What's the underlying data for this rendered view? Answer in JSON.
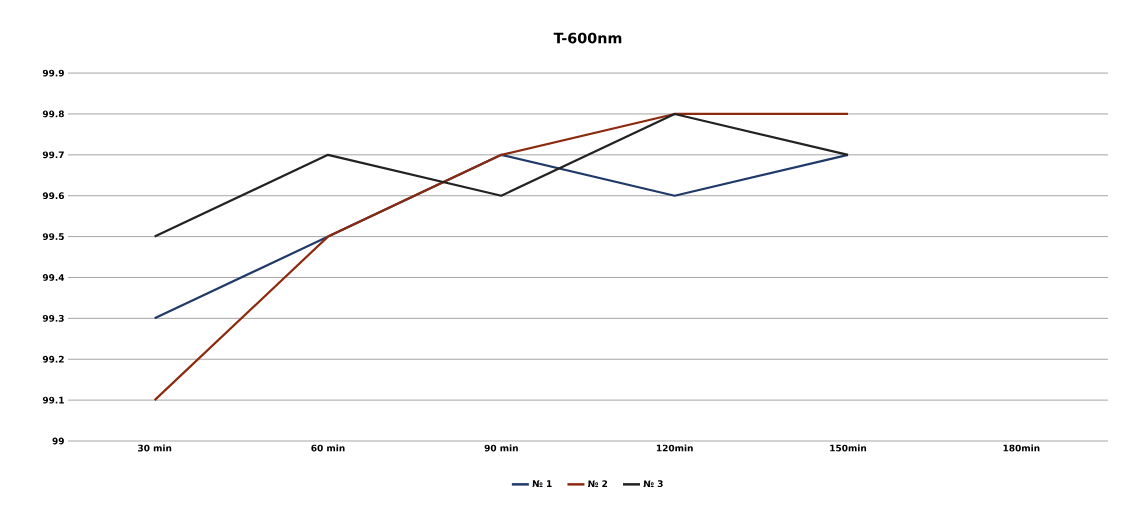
{
  "chart_data": {
    "type": "line",
    "title": "T-600nm",
    "categories": [
      "30 min",
      "60 min",
      "90 min",
      "120min",
      "150min",
      "180min"
    ],
    "series": [
      {
        "name": "№ 1",
        "color": "#1f3a68",
        "values": [
          99.3,
          99.5,
          99.7,
          99.6,
          99.7,
          null
        ]
      },
      {
        "name": "№ 2",
        "color": "#8b2a0e",
        "values": [
          99.1,
          99.5,
          99.7,
          99.8,
          99.8,
          null
        ]
      },
      {
        "name": "№ 3",
        "color": "#222222",
        "values": [
          99.5,
          99.7,
          99.6,
          99.8,
          99.7,
          null
        ]
      }
    ],
    "ylim": [
      99,
      99.9
    ],
    "yticks": [
      99,
      99.1,
      99.2,
      99.3,
      99.4,
      99.5,
      99.6,
      99.7,
      99.8,
      99.9
    ],
    "grid": "y",
    "legend": "bottom",
    "marker": "none",
    "line_style": "solid"
  }
}
